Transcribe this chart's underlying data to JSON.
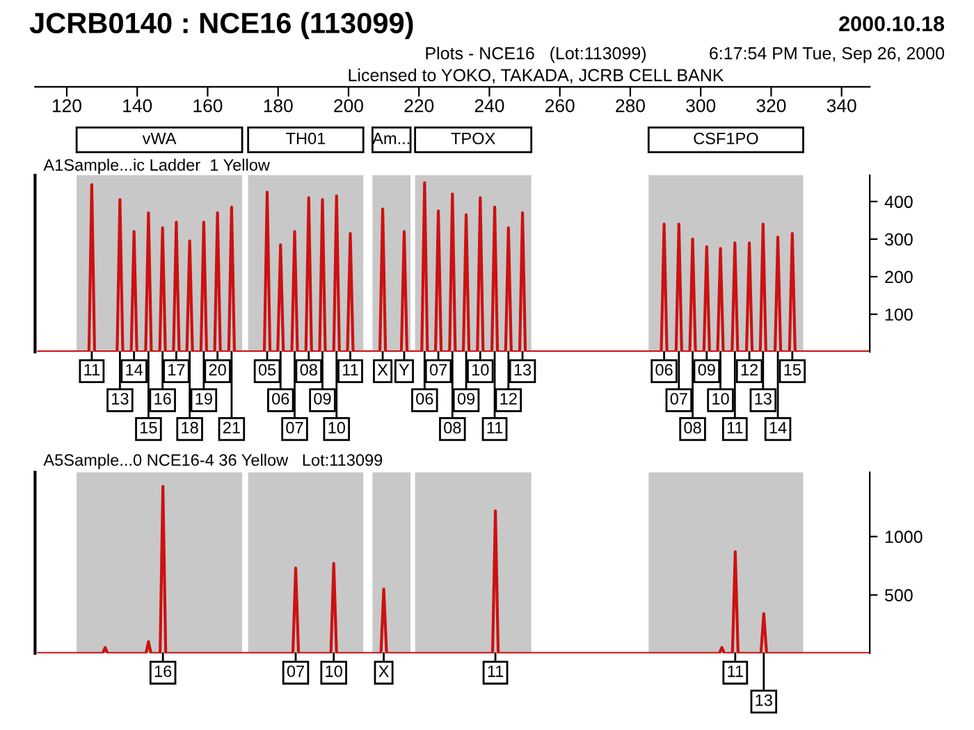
{
  "chart_data": [
    {
      "type": "line",
      "title": "JCRB0140 : NCE16 (113099)",
      "subtitle": "A1Sample...ic Ladder  1 Yellow",
      "annotations": [
        "2000.10.18",
        "Plots - NCE16   (Lot:113099)",
        "6:17:54 PM Tue, Sep 26, 2000",
        "Licensed to YOKO, TAKADA, JCRB CELL BANK",
        {
          "text": "11",
          "x": 127.1,
          "y": 0
        },
        {
          "text": "13",
          "x": 135.1,
          "y": 0
        },
        {
          "text": "14",
          "x": 139.1,
          "y": 0
        },
        {
          "text": "15",
          "x": 143.2,
          "y": 0
        },
        {
          "text": "16",
          "x": 147.2,
          "y": 0
        },
        {
          "text": "17",
          "x": 151.1,
          "y": 0
        },
        {
          "text": "18",
          "x": 154.9,
          "y": 0
        },
        {
          "text": "19",
          "x": 158.9,
          "y": 0
        },
        {
          "text": "20",
          "x": 162.8,
          "y": 0
        },
        {
          "text": "21",
          "x": 166.8,
          "y": 0
        },
        {
          "text": "05",
          "x": 176.9,
          "y": 0
        },
        {
          "text": "06",
          "x": 180.7,
          "y": 0
        },
        {
          "text": "07",
          "x": 184.7,
          "y": 0
        },
        {
          "text": "08",
          "x": 188.7,
          "y": 0
        },
        {
          "text": "09",
          "x": 192.6,
          "y": 0
        },
        {
          "text": "10",
          "x": 196.6,
          "y": 0
        },
        {
          "text": "11",
          "x": 200.5,
          "y": 0
        },
        {
          "text": "X",
          "x": 209.7,
          "y": 0
        },
        {
          "text": "Y",
          "x": 215.8,
          "y": 0
        },
        {
          "text": "06",
          "x": 221.6,
          "y": 0
        },
        {
          "text": "07",
          "x": 225.5,
          "y": 0
        },
        {
          "text": "08",
          "x": 229.5,
          "y": 0
        },
        {
          "text": "09",
          "x": 233.4,
          "y": 0
        },
        {
          "text": "10",
          "x": 237.4,
          "y": 0
        },
        {
          "text": "11",
          "x": 241.5,
          "y": 0
        },
        {
          "text": "12",
          "x": 245.4,
          "y": 0
        },
        {
          "text": "13",
          "x": 249.4,
          "y": 0
        },
        {
          "text": "06",
          "x": 289.6,
          "y": 0
        },
        {
          "text": "07",
          "x": 293.8,
          "y": 0
        },
        {
          "text": "08",
          "x": 297.7,
          "y": 0
        },
        {
          "text": "09",
          "x": 301.7,
          "y": 0
        },
        {
          "text": "10",
          "x": 305.6,
          "y": 0
        },
        {
          "text": "11",
          "x": 309.7,
          "y": 0
        },
        {
          "text": "12",
          "x": 313.8,
          "y": 0
        },
        {
          "text": "13",
          "x": 317.7,
          "y": 0
        },
        {
          "text": "14",
          "x": 321.9,
          "y": 0
        },
        {
          "text": "15",
          "x": 326.0,
          "y": 0
        }
      ],
      "series": [
        {
          "color": "#cc1111",
          "x": [
            112,
            126.3,
            127.1,
            127.9,
            134.3,
            135.1,
            135.9,
            138.3,
            139.1,
            139.9,
            142.4,
            143.2,
            144.0,
            146.4,
            147.2,
            148.0,
            150.3,
            151.1,
            151.9,
            154.1,
            154.9,
            155.7,
            158.1,
            158.9,
            159.7,
            162.0,
            162.8,
            163.6,
            166.0,
            166.8,
            167.6,
            176.1,
            176.9,
            177.7,
            179.9,
            180.7,
            181.5,
            183.9,
            184.7,
            185.5,
            187.9,
            188.7,
            189.5,
            191.8,
            192.6,
            193.4,
            195.8,
            196.6,
            197.4,
            199.7,
            200.5,
            201.3,
            208.9,
            209.7,
            210.5,
            215.0,
            215.8,
            216.6,
            220.8,
            221.6,
            222.4,
            224.7,
            225.5,
            226.3,
            228.7,
            229.5,
            230.3,
            232.6,
            233.4,
            234.2,
            236.6,
            237.4,
            238.2,
            240.7,
            241.5,
            242.3,
            244.6,
            245.4,
            246.2,
            248.6,
            249.4,
            250.2,
            288.8,
            289.6,
            290.4,
            293.0,
            293.8,
            294.6,
            296.9,
            297.7,
            298.5,
            300.9,
            301.7,
            302.5,
            304.8,
            305.6,
            306.4,
            308.9,
            309.7,
            310.5,
            313.0,
            313.8,
            314.6,
            316.9,
            317.7,
            318.5,
            321.1,
            321.9,
            322.7,
            325.2,
            326.0,
            326.8,
            348
          ],
          "values": [
            0,
            0,
            445,
            0,
            0,
            405,
            0,
            0,
            320,
            0,
            0,
            370,
            0,
            0,
            330,
            0,
            0,
            345,
            0,
            0,
            295,
            0,
            0,
            345,
            0,
            0,
            370,
            0,
            0,
            385,
            0,
            0,
            425,
            0,
            0,
            285,
            0,
            0,
            320,
            0,
            0,
            410,
            0,
            0,
            405,
            0,
            0,
            415,
            0,
            0,
            315,
            0,
            0,
            380,
            0,
            0,
            320,
            0,
            0,
            450,
            0,
            0,
            375,
            0,
            0,
            420,
            0,
            0,
            365,
            0,
            0,
            410,
            0,
            0,
            385,
            0,
            0,
            330,
            0,
            0,
            370,
            0,
            0,
            340,
            0,
            0,
            340,
            0,
            0,
            300,
            0,
            0,
            280,
            0,
            0,
            275,
            0,
            0,
            290,
            0,
            0,
            290,
            0,
            0,
            340,
            0,
            0,
            305,
            0,
            0,
            315,
            0,
            0
          ]
        }
      ],
      "bands": [
        {
          "axis": "x",
          "from": 122.8,
          "to": 169.8,
          "label": "vWA",
          "color": "#c8c8c8"
        },
        {
          "axis": "x",
          "from": 171.5,
          "to": 204.2,
          "label": "TH01",
          "color": "#c8c8c8"
        },
        {
          "axis": "x",
          "from": 206.8,
          "to": 217.6,
          "label": "Am...",
          "color": "#c8c8c8"
        },
        {
          "axis": "x",
          "from": 218.9,
          "to": 251.9,
          "label": "TPOX",
          "color": "#c8c8c8"
        },
        {
          "axis": "x",
          "from": 285.2,
          "to": 329.1,
          "label": "CSF1PO",
          "color": "#c8c8c8"
        }
      ],
      "xlim": [
        111,
        348
      ],
      "xticks": [
        120,
        140,
        160,
        180,
        200,
        220,
        240,
        260,
        280,
        300,
        320,
        340
      ],
      "ylim": [
        0,
        470
      ],
      "yticks": [
        100,
        200,
        300,
        400
      ],
      "grid": false,
      "legend": false,
      "marker": "none",
      "line_style": "solid"
    },
    {
      "type": "line",
      "title": "A5Sample...0 NCE16-4 36 Yellow   Lot:113099",
      "annotations": [
        {
          "text": "16",
          "x": 147.3,
          "y": 0
        },
        {
          "text": "07",
          "x": 185.0,
          "y": 0
        },
        {
          "text": "10",
          "x": 195.8,
          "y": 0
        },
        {
          "text": "X",
          "x": 210.0,
          "y": 0
        },
        {
          "text": "11",
          "x": 241.7,
          "y": 0
        },
        {
          "text": "11",
          "x": 309.8,
          "y": 0
        },
        {
          "text": "13",
          "x": 317.9,
          "y": 0
        }
      ],
      "series": [
        {
          "color": "#cc1111",
          "x": [
            112,
            130.2,
            130.9,
            131.6,
            142.5,
            143.2,
            143.9,
            146.5,
            147.3,
            148.1,
            184.2,
            185.0,
            185.8,
            195.0,
            195.8,
            196.6,
            209.2,
            210.0,
            210.8,
            240.9,
            241.7,
            242.5,
            305.3,
            306.0,
            306.7,
            309.0,
            309.8,
            310.6,
            317.1,
            317.9,
            318.7,
            348
          ],
          "values": [
            0,
            0,
            50,
            0,
            0,
            100,
            0,
            0,
            1430,
            0,
            0,
            730,
            0,
            0,
            770,
            0,
            0,
            550,
            0,
            0,
            1220,
            0,
            0,
            50,
            0,
            0,
            870,
            0,
            0,
            340,
            0,
            0
          ]
        }
      ],
      "bands": [
        {
          "axis": "x",
          "from": 122.8,
          "to": 169.8,
          "color": "#c8c8c8"
        },
        {
          "axis": "x",
          "from": 171.5,
          "to": 204.2,
          "color": "#c8c8c8"
        },
        {
          "axis": "x",
          "from": 206.8,
          "to": 217.6,
          "color": "#c8c8c8"
        },
        {
          "axis": "x",
          "from": 218.9,
          "to": 251.9,
          "color": "#c8c8c8"
        },
        {
          "axis": "x",
          "from": 285.2,
          "to": 329.1,
          "color": "#c8c8c8"
        }
      ],
      "xlim": [
        111,
        348
      ],
      "ylim": [
        0,
        1550
      ],
      "yticks": [
        500,
        1000
      ],
      "tick_labels": "y",
      "grid": false,
      "legend": false,
      "marker": "none",
      "line_style": "solid"
    }
  ]
}
